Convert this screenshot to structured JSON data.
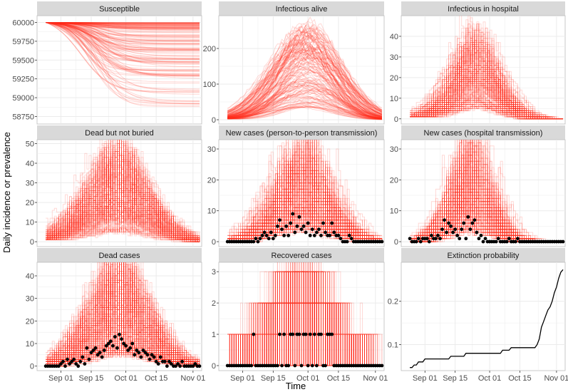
{
  "figure": {
    "xlabel": "Time",
    "ylabel": "Daily incidence or prevalence"
  },
  "colors": {
    "simulation": "#ff2a1a",
    "observed": "#000000",
    "strip_bg": "#d9d9d9",
    "panel_bg": "#ffffff",
    "grid": "#ebebeb"
  },
  "chart_data": {
    "type": "line",
    "x_ticks": [
      {
        "label": "Sep 01",
        "day": 7
      },
      {
        "label": "Sep 15",
        "day": 21
      },
      {
        "label": "Oct 01",
        "day": 37
      },
      {
        "label": "Oct 15",
        "day": 51
      },
      {
        "label": "Nov 01",
        "day": 68
      }
    ],
    "x_range_days": [
      -4,
      72
    ],
    "simulation_days": [
      0,
      71
    ],
    "panels": [
      {
        "id": "susceptible",
        "title": "Susceptible",
        "kind": "susceptible",
        "ylim": [
          58650,
          60090
        ],
        "yticks": [
          58750,
          59000,
          59250,
          59500,
          59750,
          60000
        ],
        "start": 60000,
        "min_final": 58860,
        "n_sims": 150
      },
      {
        "id": "infectious-alive",
        "title": "Infectious alive",
        "kind": "epi",
        "ylim": [
          -12,
          292
        ],
        "yticks": [
          0,
          100,
          200
        ],
        "peak_max": 275,
        "peak_day": 36,
        "width": 14,
        "start": 2,
        "noise": 0.08,
        "n_sims": 150
      },
      {
        "id": "infectious-hospital",
        "title": "Infectious in hospital",
        "kind": "epi",
        "ylim": [
          -2.5,
          50
        ],
        "yticks": [
          0,
          10,
          20,
          30,
          40
        ],
        "peak_max": 42,
        "peak_day": 30,
        "width": 10,
        "start": 1,
        "noise": 0.35,
        "step": true,
        "n_sims": 150
      },
      {
        "id": "dead-not-buried",
        "title": "Dead but not buried",
        "kind": "epi",
        "ylim": [
          -2.5,
          52
        ],
        "yticks": [
          0,
          10,
          20,
          30,
          40,
          50
        ],
        "peak_max": 46,
        "peak_day": 33,
        "width": 14,
        "start": 1,
        "noise": 0.45,
        "step": true,
        "n_sims": 150
      },
      {
        "id": "new-cases-p2p",
        "title": "New cases (person-to-person transmission)",
        "kind": "epi",
        "ylim": [
          -1.6,
          33
        ],
        "yticks": [
          0,
          10,
          20,
          30
        ],
        "peak_max": 31,
        "peak_day": 34,
        "width": 12,
        "start": 0,
        "noise": 0.55,
        "step": true,
        "n_sims": 150,
        "observed": [
          0,
          0,
          0,
          0,
          0,
          0,
          0,
          0,
          0,
          0,
          0,
          0,
          0,
          1,
          0,
          1,
          2,
          3,
          2,
          1,
          3,
          1,
          2,
          5,
          7,
          4,
          2,
          5,
          2,
          6,
          9,
          3,
          5,
          8,
          4,
          5,
          3,
          6,
          2,
          4,
          2,
          3,
          4,
          2,
          6,
          3,
          2,
          2,
          6,
          3,
          2,
          2,
          1,
          0,
          0,
          0,
          2,
          1,
          0,
          0,
          0,
          0,
          0,
          0,
          0,
          0,
          0,
          0,
          0,
          0,
          0,
          0
        ]
      },
      {
        "id": "new-cases-hospital",
        "title": "New cases (hospital transmission)",
        "kind": "epi",
        "ylim": [
          -1.6,
          33
        ],
        "yticks": [
          0,
          10,
          20,
          30
        ],
        "peak_max": 30,
        "peak_day": 28,
        "width": 9,
        "start": 0,
        "noise": 0.6,
        "step": true,
        "n_sims": 150,
        "observed": [
          1,
          0,
          0,
          0,
          1,
          0,
          1,
          1,
          1,
          0,
          2,
          1,
          1,
          2,
          1,
          4,
          7,
          3,
          6,
          5,
          3,
          4,
          2,
          1,
          4,
          6,
          1,
          8,
          4,
          6,
          7,
          3,
          1,
          2,
          0,
          1,
          0,
          0,
          0,
          0,
          0,
          1,
          0,
          0,
          0,
          0,
          1,
          0,
          0,
          0,
          1,
          0,
          0,
          0,
          0,
          0,
          0,
          0,
          0,
          0,
          0,
          0,
          0,
          0,
          0,
          0,
          0,
          0,
          0,
          0,
          0,
          0
        ]
      },
      {
        "id": "dead-cases",
        "title": "Dead cases",
        "kind": "epi",
        "ylim": [
          -2,
          46
        ],
        "yticks": [
          0,
          10,
          20,
          30,
          40
        ],
        "peak_max": 43,
        "peak_day": 34,
        "width": 13,
        "start": 0,
        "noise": 0.55,
        "step": true,
        "n_sims": 150,
        "observed": [
          0,
          0,
          0,
          0,
          0,
          0,
          0,
          1,
          2,
          0,
          3,
          1,
          2,
          3,
          1,
          0,
          2,
          4,
          1,
          8,
          3,
          6,
          7,
          8,
          5,
          6,
          4,
          7,
          9,
          10,
          11,
          9,
          13,
          8,
          14,
          12,
          10,
          9,
          7,
          8,
          10,
          5,
          7,
          6,
          4,
          7,
          6,
          5,
          3,
          5,
          4,
          2,
          1,
          4,
          2,
          2,
          0,
          2,
          1,
          0,
          0,
          1,
          0,
          2,
          0,
          0,
          0,
          0,
          0,
          1,
          0,
          0
        ]
      },
      {
        "id": "recovered-cases",
        "title": "Recovered cases",
        "kind": "epi",
        "ylim": [
          -0.16,
          3.3
        ],
        "yticks": [
          0,
          1,
          2,
          3
        ],
        "peak_max": 3.1,
        "peak_day": 33,
        "width": 16,
        "start": 0,
        "noise": 0.9,
        "step": true,
        "n_sims": 150,
        "observed": [
          0,
          0,
          0,
          0,
          0,
          0,
          0,
          0,
          0,
          0,
          0,
          0,
          1,
          0,
          0,
          0,
          0,
          0,
          0,
          0,
          0,
          0,
          0,
          0,
          1,
          0,
          1,
          0,
          0,
          1,
          1,
          0,
          1,
          1,
          0,
          1,
          1,
          0,
          1,
          0,
          1,
          0,
          1,
          1,
          0,
          0,
          1,
          1,
          1,
          0,
          0,
          0,
          0,
          0,
          0,
          0,
          0,
          0,
          0,
          0,
          0,
          0,
          0,
          0,
          0,
          0,
          0,
          0,
          0,
          0,
          0,
          0
        ]
      },
      {
        "id": "extinction-probability",
        "title": "Extinction probability",
        "kind": "extinction",
        "ylim": [
          0.04,
          0.29
        ],
        "yticks": [
          0.1,
          0.2
        ],
        "path": [
          [
            0,
            0.047
          ],
          [
            1,
            0.047
          ],
          [
            2,
            0.053
          ],
          [
            3,
            0.053
          ],
          [
            4,
            0.06
          ],
          [
            6,
            0.06
          ],
          [
            7,
            0.067
          ],
          [
            18,
            0.067
          ],
          [
            19,
            0.073
          ],
          [
            25,
            0.073
          ],
          [
            26,
            0.08
          ],
          [
            33,
            0.08
          ],
          [
            34,
            0.08
          ],
          [
            42,
            0.08
          ],
          [
            43,
            0.087
          ],
          [
            46,
            0.087
          ],
          [
            47,
            0.093
          ],
          [
            51,
            0.093
          ],
          [
            52,
            0.093
          ],
          [
            58,
            0.093
          ],
          [
            59,
            0.1
          ],
          [
            60,
            0.113
          ],
          [
            61,
            0.14
          ],
          [
            62,
            0.153
          ],
          [
            63,
            0.167
          ],
          [
            64,
            0.18
          ],
          [
            65,
            0.187
          ],
          [
            66,
            0.2
          ],
          [
            67,
            0.22
          ],
          [
            68,
            0.233
          ],
          [
            69,
            0.253
          ],
          [
            70,
            0.267
          ],
          [
            71,
            0.273
          ]
        ]
      }
    ]
  }
}
